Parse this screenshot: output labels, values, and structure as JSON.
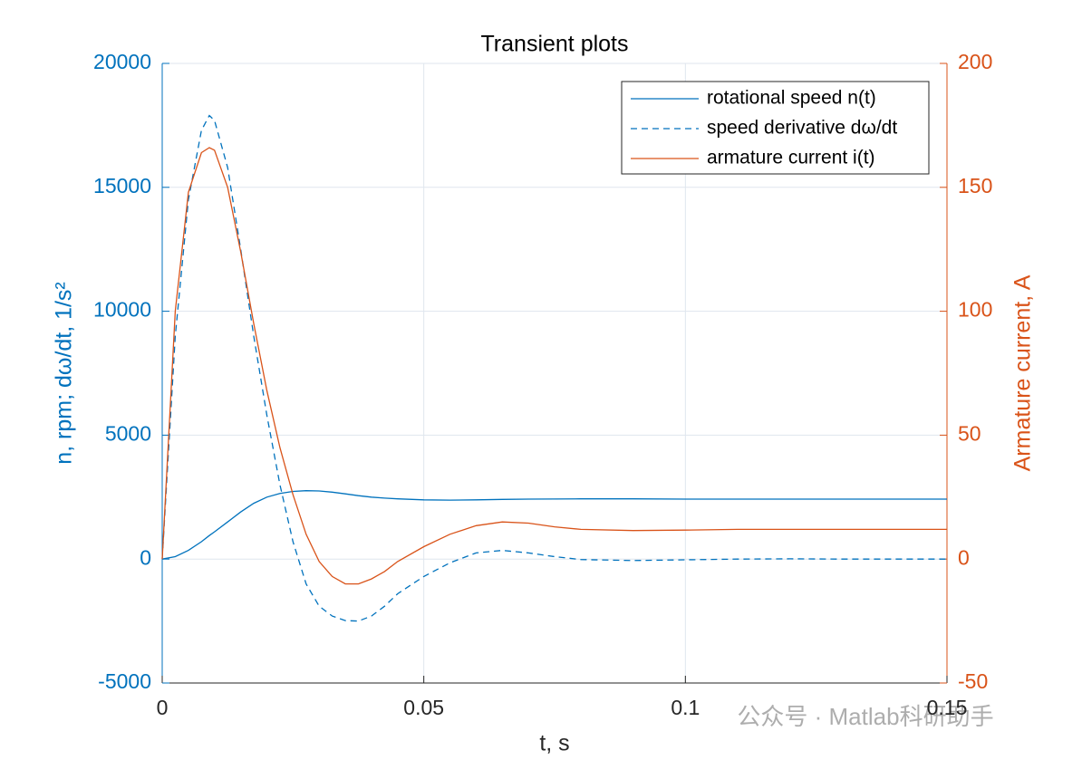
{
  "chart_data": {
    "type": "line",
    "title": "Transient plots",
    "x_label": "t, s",
    "y_label": "n, rpm; dω/dt, 1/s²",
    "y2_label": "Armature current, A",
    "watermark": "公众号 · Matlab科研助手",
    "x": [
      0,
      0.0025,
      0.005,
      0.0075,
      0.009,
      0.01,
      0.0125,
      0.015,
      0.0175,
      0.02,
      0.0225,
      0.025,
      0.0275,
      0.03,
      0.0325,
      0.035,
      0.0375,
      0.04,
      0.0425,
      0.045,
      0.05,
      0.055,
      0.06,
      0.065,
      0.07,
      0.075,
      0.08,
      0.09,
      0.1,
      0.11,
      0.12,
      0.13,
      0.14,
      0.15
    ],
    "series": [
      {
        "name": "rotational speed n(t)",
        "color": "#0072BD",
        "linestyle": "solid",
        "values": [
          0,
          100,
          350,
          700,
          950,
          1100,
          1500,
          1900,
          2250,
          2500,
          2650,
          2730,
          2760,
          2750,
          2700,
          2630,
          2560,
          2500,
          2460,
          2430,
          2390,
          2380,
          2390,
          2410,
          2420,
          2425,
          2430,
          2430,
          2420,
          2420,
          2420,
          2420,
          2420,
          2420
        ]
      },
      {
        "name": "speed derivative dω/dt",
        "color": "#0072BD",
        "linestyle": "dashed",
        "values": [
          0,
          9000,
          14500,
          17300,
          17900,
          17700,
          15800,
          12500,
          9000,
          5800,
          3000,
          700,
          -1000,
          -1900,
          -2300,
          -2480,
          -2500,
          -2300,
          -1900,
          -1400,
          -700,
          -150,
          250,
          350,
          250,
          100,
          -20,
          -60,
          -30,
          0,
          10,
          0,
          0,
          0
        ]
      },
      {
        "name": "armature current i(t)",
        "color": "#D95319",
        "linestyle": "solid",
        "axis": "y2",
        "values": [
          0,
          100,
          148,
          164,
          166,
          165,
          150,
          124,
          95,
          68,
          45,
          26,
          10,
          -1,
          -7,
          -10,
          -10,
          -8,
          -5,
          -1,
          5,
          10,
          13.5,
          15,
          14.5,
          13,
          12,
          11.5,
          11.7,
          12,
          12,
          12,
          12,
          12
        ]
      }
    ],
    "xlim": [
      0,
      0.15
    ],
    "xticks": [
      0,
      0.05,
      0.1,
      0.15
    ],
    "ylim": [
      -5000,
      20000
    ],
    "yticks": [
      -5000,
      0,
      5000,
      10000,
      15000,
      20000
    ],
    "y2lim": [
      -50,
      200
    ],
    "y2ticks": [
      -50,
      0,
      50,
      100,
      150,
      200
    ],
    "grid": true,
    "legend": "top-right"
  }
}
